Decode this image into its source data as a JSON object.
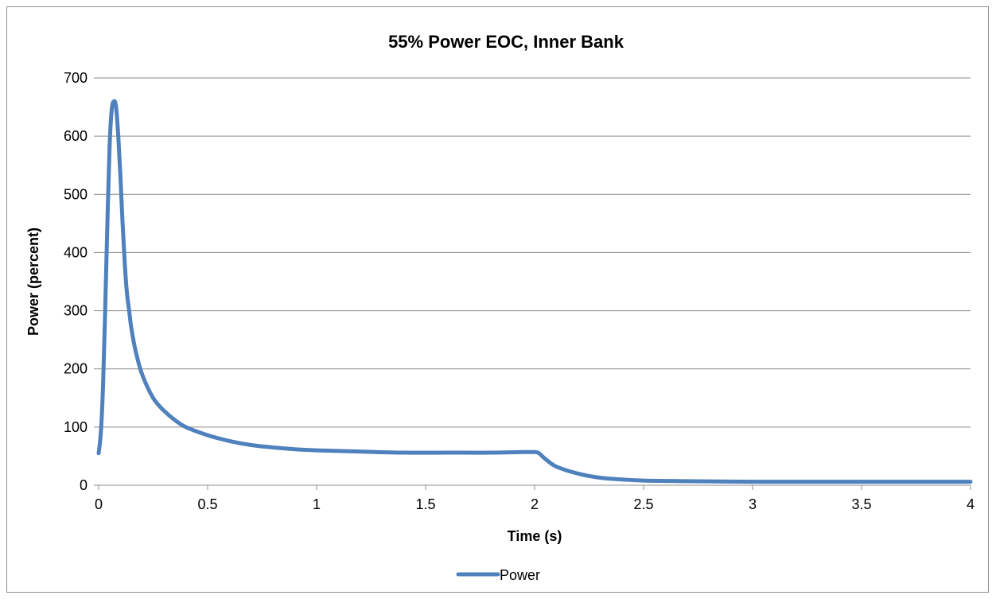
{
  "chart_data": {
    "type": "line",
    "title": "55% Power EOC, Inner Bank",
    "xlabel": "Time (s)",
    "ylabel": "Power (percent)",
    "xlim": [
      0,
      4
    ],
    "ylim": [
      0,
      700
    ],
    "xticks": [
      "0",
      "0.5",
      "1",
      "1.5",
      "2",
      "2.5",
      "3",
      "3.5",
      "4"
    ],
    "yticks": [
      "0",
      "100",
      "200",
      "300",
      "400",
      "500",
      "600",
      "700"
    ],
    "grid": "horizontal",
    "legend_position": "bottom",
    "series": [
      {
        "name": "Power",
        "color": "#4f81bd",
        "x": [
          0,
          0.01,
          0.02,
          0.03,
          0.04,
          0.05,
          0.06,
          0.07,
          0.08,
          0.09,
          0.1,
          0.11,
          0.12,
          0.13,
          0.14,
          0.15,
          0.17,
          0.2,
          0.25,
          0.3,
          0.35,
          0.4,
          0.5,
          0.6,
          0.7,
          0.8,
          0.9,
          1.0,
          1.2,
          1.4,
          1.6,
          1.8,
          1.95,
          2.0,
          2.02,
          2.05,
          2.1,
          2.2,
          2.3,
          2.4,
          2.5,
          2.7,
          3.0,
          3.5,
          4.0
        ],
        "y": [
          55,
          90,
          170,
          300,
          450,
          580,
          645,
          660,
          650,
          600,
          530,
          450,
          380,
          330,
          300,
          270,
          230,
          190,
          150,
          128,
          112,
          100,
          86,
          76,
          69,
          65,
          62,
          60,
          58,
          56,
          56,
          56,
          57,
          57,
          55,
          45,
          32,
          20,
          13,
          10,
          8,
          7,
          6,
          6,
          6
        ]
      }
    ]
  }
}
